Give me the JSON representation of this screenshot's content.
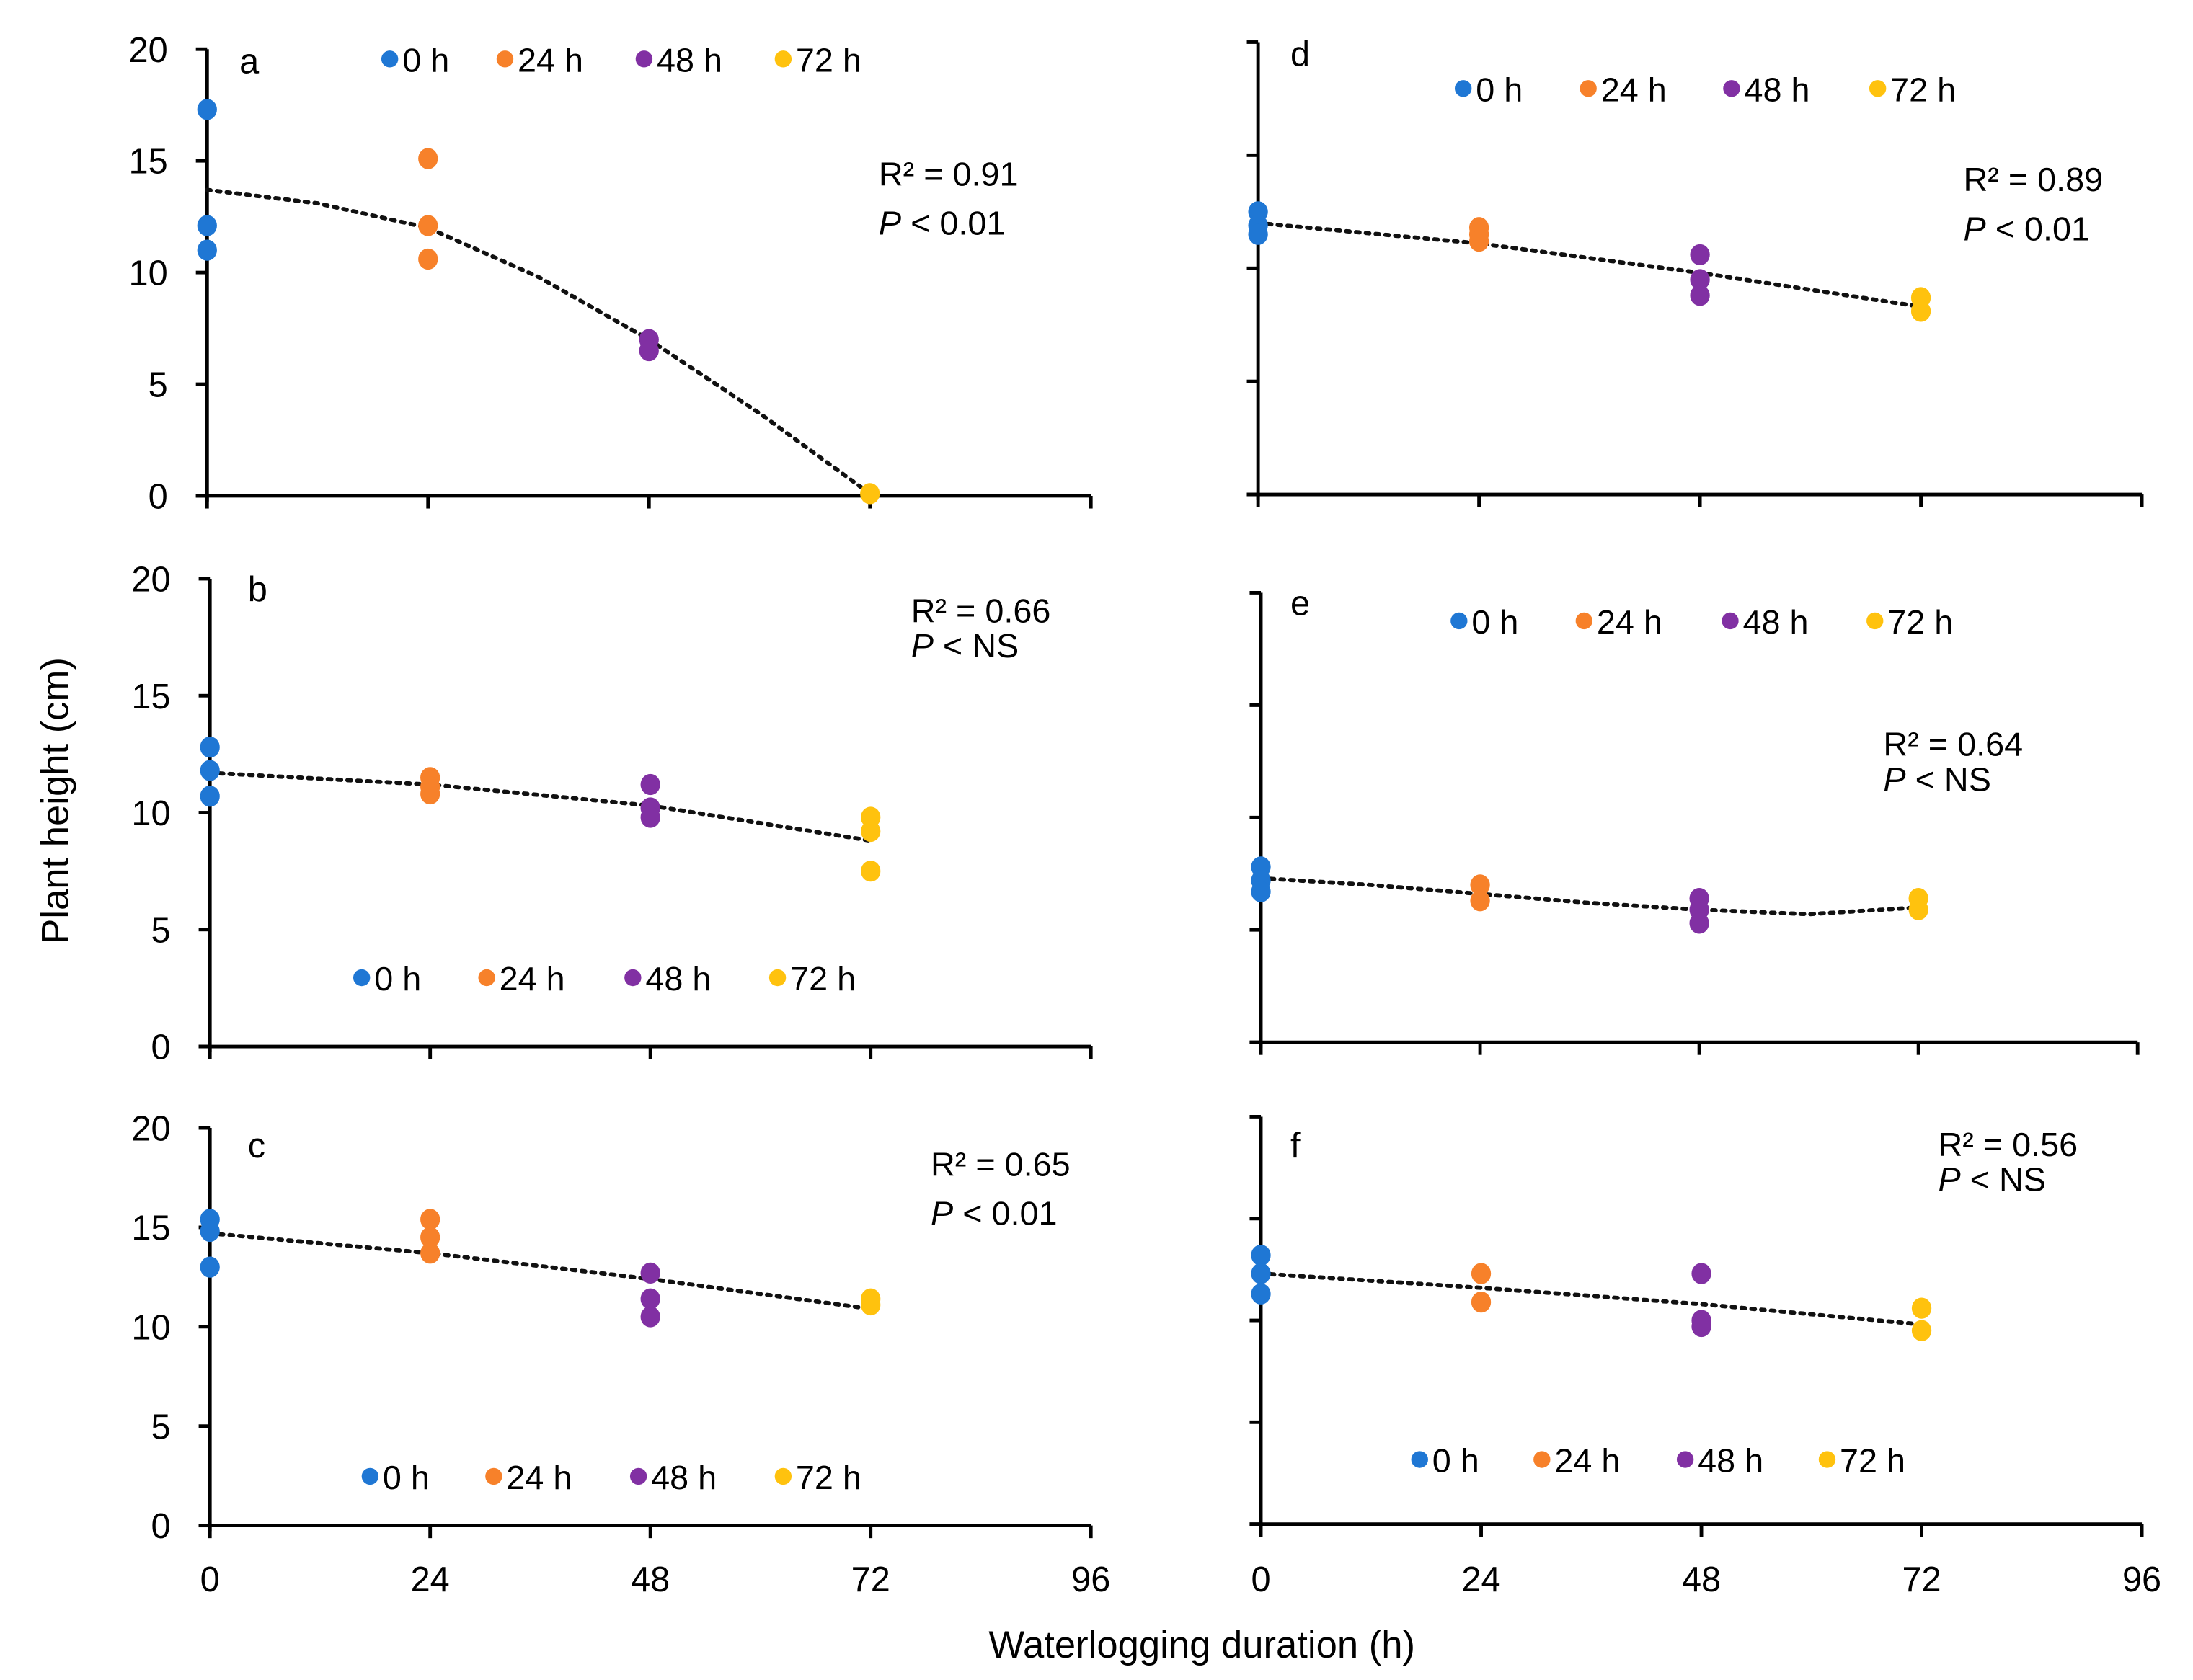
{
  "chart_data": {
    "type": "scatter",
    "xlabel": "Waterlogging duration (h)",
    "ylabel": "Plant height (cm)",
    "xlim": [
      0,
      96
    ],
    "ylim": [
      0,
      20
    ],
    "x_ticks": [
      "0",
      "24",
      "48",
      "72",
      "96"
    ],
    "y_ticks": [
      "0",
      "5",
      "10",
      "15",
      "20"
    ],
    "legend": [
      {
        "label": "0 h",
        "color": "#1f77d4"
      },
      {
        "label": "24 h",
        "color": "#f7812a"
      },
      {
        "label": "48 h",
        "color": "#8130a3"
      },
      {
        "label": "72 h",
        "color": "#ffc20e"
      }
    ],
    "panels": [
      {
        "id": "a",
        "r2": "R² = 0.91",
        "p_symbol": "P",
        "p_value": "< 0.01",
        "series": [
          [
            17.3,
            12.1,
            11.0
          ],
          [
            15.1,
            12.1,
            10.6
          ],
          [
            7.0,
            6.5
          ],
          [
            0.1
          ]
        ],
        "trend": [
          [
            0,
            13.7
          ],
          [
            12,
            13.1
          ],
          [
            24,
            12.0
          ],
          [
            36,
            9.8
          ],
          [
            48,
            7.0
          ],
          [
            60,
            3.7
          ],
          [
            72,
            0.1
          ]
        ]
      },
      {
        "id": "b",
        "r2": "R² = 0.66",
        "p_symbol": "P",
        "p_value": "< NS",
        "series": [
          [
            12.8,
            11.8,
            10.7
          ],
          [
            11.5,
            11.1,
            10.8
          ],
          [
            11.2,
            10.2,
            9.8
          ],
          [
            9.8,
            9.2,
            7.5
          ]
        ],
        "trend": [
          [
            0,
            11.7
          ],
          [
            24,
            11.2
          ],
          [
            48,
            10.3
          ],
          [
            72,
            8.8
          ]
        ]
      },
      {
        "id": "c",
        "r2": "R² = 0.65",
        "p_symbol": "P",
        "p_value": "< 0.01",
        "series": [
          [
            15.4,
            14.8,
            13.0
          ],
          [
            15.4,
            14.5,
            13.7
          ],
          [
            12.7,
            11.4,
            10.5
          ],
          [
            11.4,
            11.1
          ]
        ],
        "trend": [
          [
            0,
            14.7
          ],
          [
            24,
            13.7
          ],
          [
            48,
            12.4
          ],
          [
            72,
            10.9
          ]
        ]
      },
      {
        "id": "d",
        "r2": "R² = 0.89",
        "p_symbol": "P",
        "p_value": "< 0.01",
        "series": [
          [
            12.5,
            11.9,
            11.5
          ],
          [
            11.8,
            11.5,
            11.2
          ],
          [
            10.6,
            9.5,
            8.8
          ],
          [
            8.7,
            8.1
          ]
        ],
        "trend": [
          [
            0,
            12.0
          ],
          [
            24,
            11.1
          ],
          [
            48,
            9.8
          ],
          [
            72,
            8.3
          ]
        ]
      },
      {
        "id": "e",
        "r2": "R² = 0.64",
        "p_symbol": "P",
        "p_value": "< NS",
        "series": [
          [
            7.8,
            7.2,
            6.7
          ],
          [
            7.0,
            6.3
          ],
          [
            6.4,
            5.9,
            5.3
          ],
          [
            6.4,
            5.9
          ]
        ],
        "trend": [
          [
            0,
            7.3
          ],
          [
            12,
            7.0
          ],
          [
            24,
            6.6
          ],
          [
            36,
            6.2
          ],
          [
            48,
            5.9
          ],
          [
            60,
            5.7
          ],
          [
            72,
            6.0
          ]
        ]
      },
      {
        "id": "f",
        "r2": "R² = 0.56",
        "p_symbol": "P",
        "p_value": "< NS",
        "series": [
          [
            13.2,
            12.3,
            11.3
          ],
          [
            12.3,
            10.9
          ],
          [
            12.3,
            10.0,
            9.7
          ],
          [
            10.6,
            9.5
          ]
        ],
        "trend": [
          [
            0,
            12.3
          ],
          [
            24,
            11.6
          ],
          [
            48,
            10.8
          ],
          [
            72,
            9.8
          ]
        ]
      }
    ]
  }
}
